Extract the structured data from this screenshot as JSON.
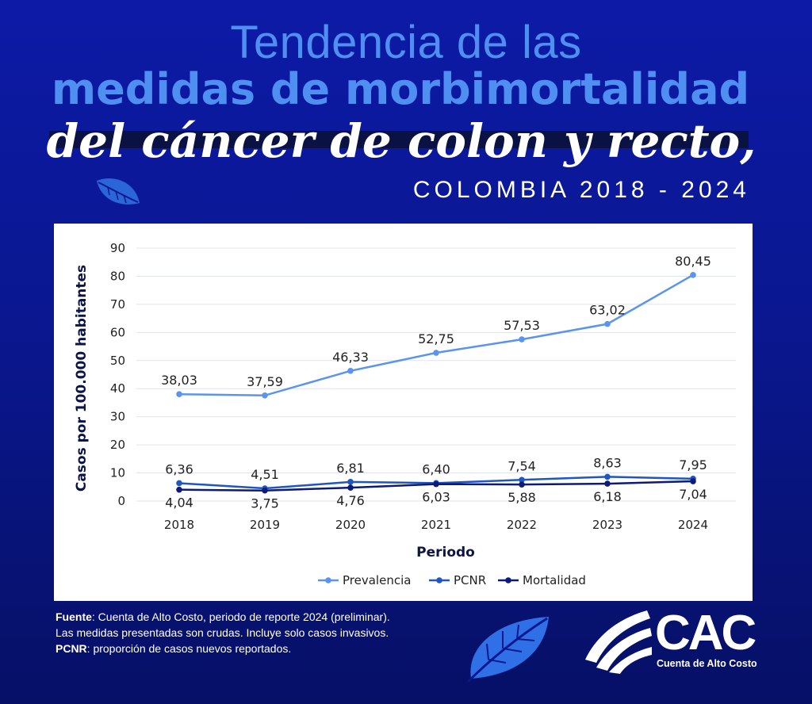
{
  "header": {
    "title_line1": "Tendencia de las",
    "title_line2": "medidas de morbimortalidad",
    "title_line3": "del cáncer de colon y recto,",
    "subtitle": "COLOMBIA 2018 - 2024"
  },
  "colors": {
    "background": "#0a1790",
    "accent_light_blue": "#4f8ff2",
    "prevalencia": "#5b94ee",
    "pcnr": "#1f56c2",
    "mortalidad": "#0e1a78"
  },
  "chart_data": {
    "type": "line",
    "categories": [
      "2018",
      "2019",
      "2020",
      "2021",
      "2022",
      "2023",
      "2024"
    ],
    "series": [
      {
        "name": "Prevalencia",
        "values": [
          38.03,
          37.59,
          46.33,
          52.75,
          57.53,
          63.02,
          80.45
        ],
        "labels": [
          "38,03",
          "37,59",
          "46,33",
          "52,75",
          "57,53",
          "63,02",
          "80,45"
        ],
        "color": "#5b94ee"
      },
      {
        "name": "PCNR",
        "values": [
          6.36,
          4.51,
          6.81,
          6.4,
          7.54,
          8.63,
          7.95
        ],
        "labels": [
          "6,36",
          "4,51",
          "6,81",
          "6,40",
          "7,54",
          "8,63",
          "7,95"
        ],
        "color": "#1f56c2"
      },
      {
        "name": "Mortalidad",
        "values": [
          4.04,
          3.75,
          4.76,
          6.03,
          5.88,
          6.18,
          7.04
        ],
        "labels": [
          "4,04",
          "3,75",
          "4,76",
          "6,03",
          "5,88",
          "6,18",
          "7,04"
        ],
        "color": "#0e1a78"
      }
    ],
    "xlabel": "Periodo",
    "ylabel": "Casos por 100.000 habitantes",
    "ylim": [
      0,
      90
    ],
    "yticks": [
      "0",
      "10",
      "20",
      "30",
      "40",
      "50",
      "60",
      "70",
      "80",
      "90"
    ],
    "grid": true,
    "legend_position": "bottom"
  },
  "footer": {
    "source_label": "Fuente",
    "source_text": ": Cuenta de Alto Costo, periodo de reporte 2024 (preliminar).",
    "note_line": "Las medidas presentadas son crudas. Incluye solo casos invasivos.",
    "pcnr_label": "PCNR",
    "pcnr_text": ": proporción de casos nuevos reportados."
  },
  "logo": {
    "text": "CAC",
    "subtext": "Cuenta de Alto Costo"
  }
}
